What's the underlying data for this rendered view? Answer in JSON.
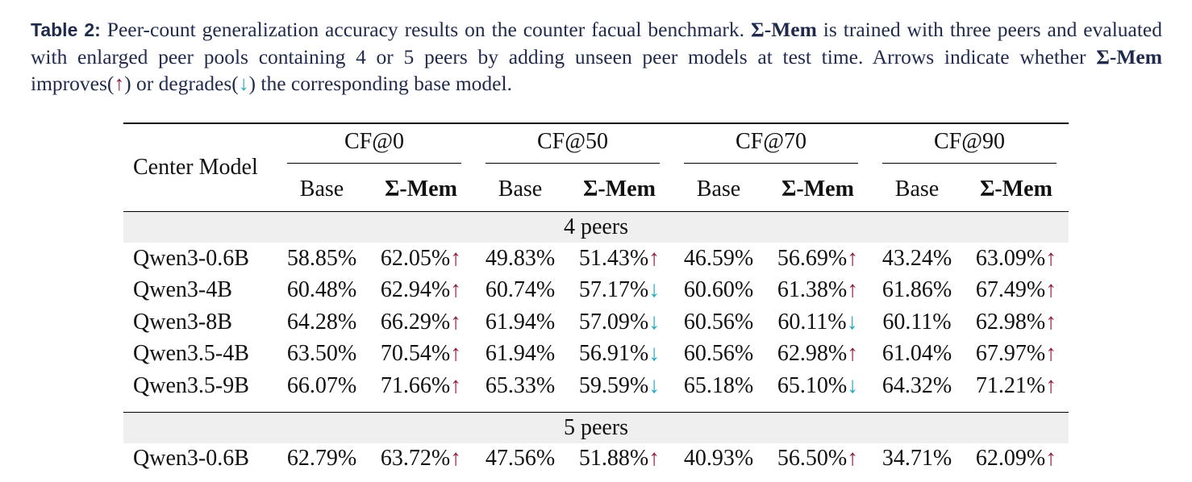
{
  "caption": {
    "label": "Table 2:",
    "text_1": " Peer-count generalization accuracy results on the counter facual benchmark. ",
    "method_name": "Σ-Mem",
    "text_2": " is trained with three peers and evaluated with enlarged peer pools containing 4 or 5 peers by adding unseen peer models at test time. Arrows indicate whether ",
    "text_3": " improves(",
    "up_arrow": "↑",
    "text_4": ") or degrades(",
    "down_arrow": "↓",
    "text_5": ") the corresponding base model."
  },
  "table": {
    "center_model_header": "Center Model",
    "groups": [
      "CF@0",
      "CF@50",
      "CF@70",
      "CF@90"
    ],
    "base_label": "Base",
    "mem_label": "Σ-Mem",
    "sections": [
      {
        "title": "4 peers",
        "rows": [
          {
            "model": "Qwen3-0.6B",
            "cells": [
              {
                "base": "58.85%",
                "mem": "62.05%",
                "arrow": "↑",
                "dir": "up"
              },
              {
                "base": "49.83%",
                "mem": "51.43%",
                "arrow": "↑",
                "dir": "up"
              },
              {
                "base": "46.59%",
                "mem": "56.69%",
                "arrow": "↑",
                "dir": "up"
              },
              {
                "base": "43.24%",
                "mem": "63.09%",
                "arrow": "↑",
                "dir": "up"
              }
            ]
          },
          {
            "model": "Qwen3-4B",
            "cells": [
              {
                "base": "60.48%",
                "mem": "62.94%",
                "arrow": "↑",
                "dir": "up"
              },
              {
                "base": "60.74%",
                "mem": "57.17%",
                "arrow": "↓",
                "dir": "down"
              },
              {
                "base": "60.60%",
                "mem": "61.38%",
                "arrow": "↑",
                "dir": "up"
              },
              {
                "base": "61.86%",
                "mem": "67.49%",
                "arrow": "↑",
                "dir": "up"
              }
            ]
          },
          {
            "model": "Qwen3-8B",
            "cells": [
              {
                "base": "64.28%",
                "mem": "66.29%",
                "arrow": "↑",
                "dir": "up"
              },
              {
                "base": "61.94%",
                "mem": "57.09%",
                "arrow": "↓",
                "dir": "down"
              },
              {
                "base": "60.56%",
                "mem": "60.11%",
                "arrow": "↓",
                "dir": "down"
              },
              {
                "base": "60.11%",
                "mem": "62.98%",
                "arrow": "↑",
                "dir": "up"
              }
            ]
          },
          {
            "model": "Qwen3.5-4B",
            "cells": [
              {
                "base": "63.50%",
                "mem": "70.54%",
                "arrow": "↑",
                "dir": "up"
              },
              {
                "base": "61.94%",
                "mem": "56.91%",
                "arrow": "↓",
                "dir": "down"
              },
              {
                "base": "60.56%",
                "mem": "62.98%",
                "arrow": "↑",
                "dir": "up"
              },
              {
                "base": "61.04%",
                "mem": "67.97%",
                "arrow": "↑",
                "dir": "up"
              }
            ]
          },
          {
            "model": "Qwen3.5-9B",
            "cells": [
              {
                "base": "66.07%",
                "mem": "71.66%",
                "arrow": "↑",
                "dir": "up"
              },
              {
                "base": "65.33%",
                "mem": "59.59%",
                "arrow": "↓",
                "dir": "down"
              },
              {
                "base": "65.18%",
                "mem": "65.10%",
                "arrow": "↓",
                "dir": "down"
              },
              {
                "base": "64.32%",
                "mem": "71.21%",
                "arrow": "↑",
                "dir": "up"
              }
            ]
          }
        ]
      },
      {
        "title": "5 peers",
        "rows": [
          {
            "model": "Qwen3-0.6B",
            "cells": [
              {
                "base": "62.79%",
                "mem": "63.72%",
                "arrow": "↑",
                "dir": "up"
              },
              {
                "base": "47.56%",
                "mem": "51.88%",
                "arrow": "↑",
                "dir": "up"
              },
              {
                "base": "40.93%",
                "mem": "56.50%",
                "arrow": "↑",
                "dir": "up"
              },
              {
                "base": "34.71%",
                "mem": "62.09%",
                "arrow": "↑",
                "dir": "up"
              }
            ]
          }
        ]
      }
    ]
  },
  "colors": {
    "caption_text": "#1f2a4d",
    "arrow_up": "#8c1a3c",
    "arrow_down": "#1fa8c0",
    "section_band": "#efefef"
  }
}
